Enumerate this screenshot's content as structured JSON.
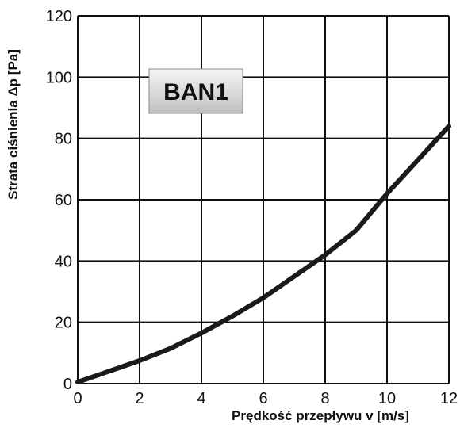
{
  "chart_data": {
    "type": "line",
    "xlabel": "Prędkość przepływu v [m/s]",
    "ylabel": "Strata ciśnienia Δp [Pa]",
    "xlim": [
      0,
      12
    ],
    "ylim": [
      0,
      120
    ],
    "x_ticks": [
      "0",
      "2",
      "4",
      "6",
      "8",
      "10",
      "12"
    ],
    "y_ticks": [
      "0",
      "20",
      "40",
      "60",
      "80",
      "100",
      "120"
    ],
    "grid": true,
    "annotation": "BAN1",
    "series": [
      {
        "color": "#1a1a1a",
        "x": [
          0,
          1,
          2,
          3,
          4,
          5,
          6,
          7,
          8,
          9,
          10,
          11,
          12
        ],
        "y": [
          0.5,
          4,
          7.5,
          11.5,
          16.5,
          22,
          28,
          35,
          42,
          50,
          62,
          73,
          84
        ]
      }
    ]
  }
}
